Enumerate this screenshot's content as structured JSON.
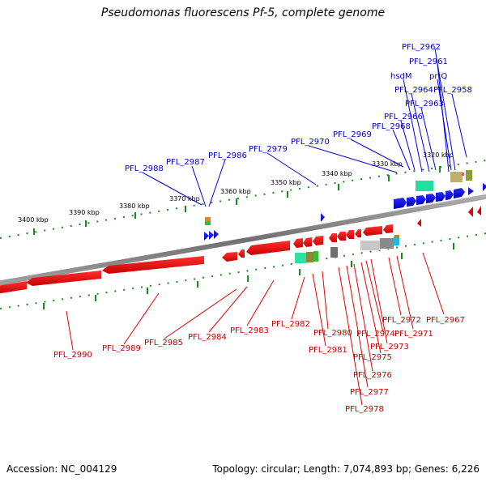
{
  "title": "Pseudomonas fluorescens Pf-5, complete genome",
  "footer": {
    "accession": "Accession: NC_004129",
    "stats": "Topology: circular; Length: 7,074,893 bp; Genes: 6,226"
  },
  "colors": {
    "forward_strand": "#0000e0",
    "reverse_strand": "#e60000",
    "ticks": "#1a8a1a",
    "backbone": "#808080",
    "label_top": "#0000c8",
    "label_bottom": "#c80000"
  },
  "kbp_labels": [
    "3320 kbp",
    "3330 kbp",
    "3340 kbp",
    "3350 kbp",
    "3360 kbp",
    "3370 kbp",
    "3380 kbp",
    "3390 kbp",
    "3400 kbp"
  ],
  "top_labels": [
    "PFL_2962",
    "PFL_2961",
    "hsdM",
    "prtQ",
    "PFL_2964",
    "PFL_2958",
    "PFL_2963",
    "PFL_2966",
    "PFL_2968",
    "PFL_2969",
    "PFL_2970",
    "PFL_2979",
    "PFL_2986",
    "PFL_2987",
    "PFL_2988"
  ],
  "bottom_labels": [
    "PFL_2967",
    "PFL_2972",
    "PFL_2971",
    "PFL_2974",
    "PFL_2973",
    "PFL_2975",
    "PFL_2976",
    "PFL_2977",
    "PFL_2978",
    "PFL_2980",
    "PFL_2981",
    "PFL_2982",
    "PFL_2983",
    "PFL_2984",
    "PFL_2985",
    "PFL_2989",
    "PFL_2990"
  ]
}
